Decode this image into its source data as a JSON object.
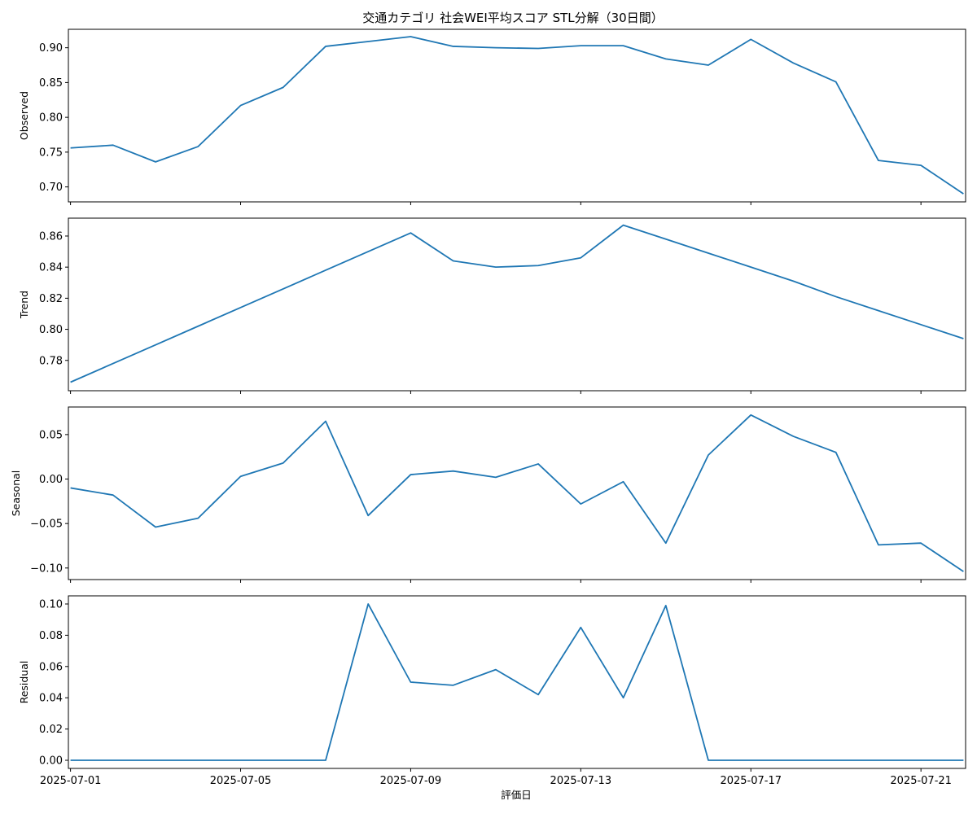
{
  "chart_data": {
    "type": "line",
    "title": "交通カテゴリ 社会WEI平均スコア STL分解（30日間）",
    "xlabel": "評価日",
    "series_color": "#1f77b4",
    "x": [
      "2025-07-01",
      "2025-07-02",
      "2025-07-03",
      "2025-07-04",
      "2025-07-05",
      "2025-07-06",
      "2025-07-07",
      "2025-07-08",
      "2025-07-09",
      "2025-07-10",
      "2025-07-11",
      "2025-07-12",
      "2025-07-13",
      "2025-07-14",
      "2025-07-15",
      "2025-07-16",
      "2025-07-17",
      "2025-07-18",
      "2025-07-19",
      "2025-07-20",
      "2025-07-21",
      "2025-07-22"
    ],
    "xlim": [
      "2025-06-30T22:48:00",
      "2025-07-22T01:12:00"
    ],
    "x_ticks": [
      "2025-07-01",
      "2025-07-05",
      "2025-07-09",
      "2025-07-13",
      "2025-07-17",
      "2025-07-21"
    ],
    "panels": [
      {
        "name": "observed",
        "ylabel": "Observed",
        "ylim": [
          0.6785,
          0.9265
        ],
        "yticks": [
          "0.70",
          "0.75",
          "0.80",
          "0.85",
          "0.90"
        ],
        "values": [
          0.756,
          0.76,
          0.736,
          0.758,
          0.817,
          0.843,
          0.902,
          0.909,
          0.916,
          0.902,
          0.9,
          0.899,
          0.903,
          0.903,
          0.884,
          0.875,
          0.912,
          0.878,
          0.851,
          0.738,
          0.731,
          0.69
        ]
      },
      {
        "name": "trend",
        "ylabel": "Trend",
        "ylim": [
          0.7605,
          0.8715
        ],
        "yticks": [
          "0.78",
          "0.80",
          "0.82",
          "0.84",
          "0.86"
        ],
        "values": [
          0.766,
          0.778,
          0.79,
          0.802,
          0.814,
          0.826,
          0.838,
          0.85,
          0.862,
          0.844,
          0.84,
          0.841,
          0.846,
          0.867,
          0.858,
          0.849,
          0.84,
          0.831,
          0.821,
          0.812,
          0.803,
          0.794
        ]
      },
      {
        "name": "seasonal",
        "ylabel": "Seasonal",
        "ylim": [
          -0.113,
          0.081
        ],
        "yticks": [
          "−0.10",
          "−0.05",
          "0.00",
          "0.05"
        ],
        "values": [
          -0.01,
          -0.018,
          -0.054,
          -0.044,
          0.003,
          0.018,
          0.065,
          -0.041,
          0.005,
          0.009,
          0.002,
          0.017,
          -0.028,
          -0.003,
          -0.072,
          0.027,
          0.072,
          0.048,
          0.03,
          -0.074,
          -0.072,
          -0.104
        ]
      },
      {
        "name": "residual",
        "ylabel": "Residual",
        "ylim": [
          -0.0052,
          0.1052
        ],
        "yticks": [
          "0.00",
          "0.02",
          "0.04",
          "0.06",
          "0.08",
          "0.10"
        ],
        "values": [
          0.0,
          0.0,
          0.0,
          0.0,
          0.0,
          0.0,
          0.0,
          0.1,
          0.05,
          0.048,
          0.058,
          0.042,
          0.085,
          0.04,
          0.099,
          0.0,
          0.0,
          0.0,
          0.0,
          0.0,
          0.0,
          0.0
        ]
      }
    ]
  }
}
